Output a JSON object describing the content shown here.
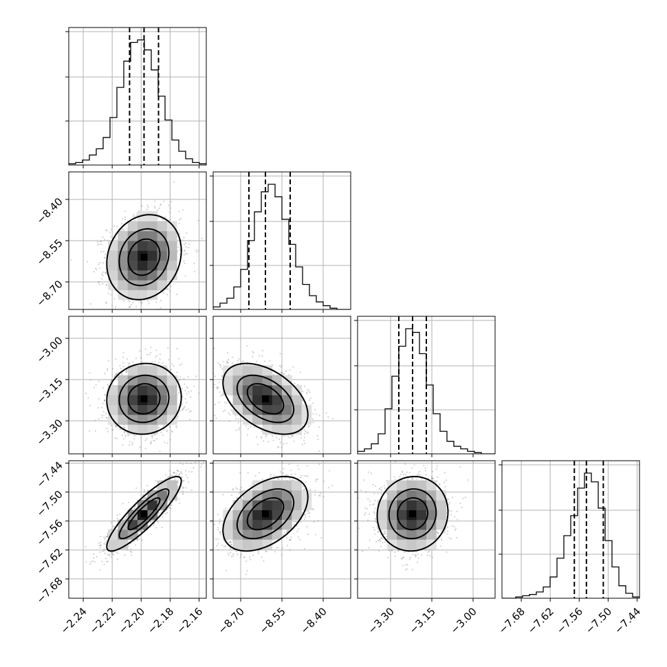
{
  "chart_data": {
    "type": "corner",
    "grid": true,
    "parameters": [
      {
        "index": 0,
        "median": -2.198,
        "q16": -2.208,
        "q84": -2.188,
        "sd": 0.01,
        "range": [
          -2.25,
          -2.155
        ],
        "ticks": [
          -2.24,
          -2.22,
          -2.2,
          -2.18,
          -2.16
        ],
        "tick_labels": [
          "−2.24",
          "−2.22",
          "−2.20",
          "−2.18",
          "−2.16"
        ]
      },
      {
        "index": 1,
        "median": -8.61,
        "q16": -8.67,
        "q84": -8.52,
        "sd": 0.06,
        "range": [
          -8.8,
          -8.3
        ],
        "ticks": [
          -8.7,
          -8.55,
          -8.4
        ],
        "tick_labels": [
          "−8.70",
          "−8.55",
          "−8.40"
        ]
      },
      {
        "index": 2,
        "median": -3.22,
        "q16": -3.27,
        "q84": -3.17,
        "sd": 0.05,
        "range": [
          -3.42,
          -2.92
        ],
        "ticks": [
          -3.3,
          -3.15,
          -3.0
        ],
        "tick_labels": [
          "−3.30",
          "−3.15",
          "−3.00"
        ]
      },
      {
        "index": 3,
        "median": -7.545,
        "q16": -7.57,
        "q84": -7.51,
        "sd": 0.03,
        "range": [
          -7.72,
          -7.435
        ],
        "ticks": [
          -7.68,
          -7.62,
          -7.56,
          -7.5,
          -7.44
        ],
        "tick_labels": [
          "−7.68",
          "−7.62",
          "−7.56",
          "−7.50",
          "−7.44"
        ]
      }
    ],
    "correlations": {
      "1_0": 0.15,
      "2_0": 0.05,
      "2_1": -0.45,
      "3_0": 0.88,
      "3_1": 0.45,
      "3_2": 0.05
    },
    "histograms": [
      [
        0.01,
        0.02,
        0.04,
        0.08,
        0.13,
        0.22,
        0.38,
        0.62,
        0.83,
        0.98,
        1.0,
        0.92,
        0.76,
        0.55,
        0.36,
        0.2,
        0.11,
        0.05,
        0.02,
        0.01
      ],
      [
        0.02,
        0.05,
        0.09,
        0.18,
        0.32,
        0.55,
        0.78,
        0.94,
        1.0,
        0.9,
        0.72,
        0.52,
        0.34,
        0.2,
        0.11,
        0.06,
        0.03,
        0.01,
        0.0,
        0.0
      ],
      [
        0.02,
        0.04,
        0.08,
        0.16,
        0.36,
        0.62,
        0.86,
        1.0,
        0.97,
        0.8,
        0.55,
        0.32,
        0.18,
        0.1,
        0.06,
        0.04,
        0.02,
        0.01,
        0.0,
        0.0
      ],
      [
        0.0,
        0.0,
        0.01,
        0.02,
        0.03,
        0.05,
        0.09,
        0.17,
        0.32,
        0.5,
        0.66,
        0.88,
        1.0,
        0.93,
        0.72,
        0.46,
        0.25,
        0.1,
        0.04,
        0.01
      ]
    ],
    "contour_levels": [
      0.12,
      0.39,
      0.68
    ]
  }
}
